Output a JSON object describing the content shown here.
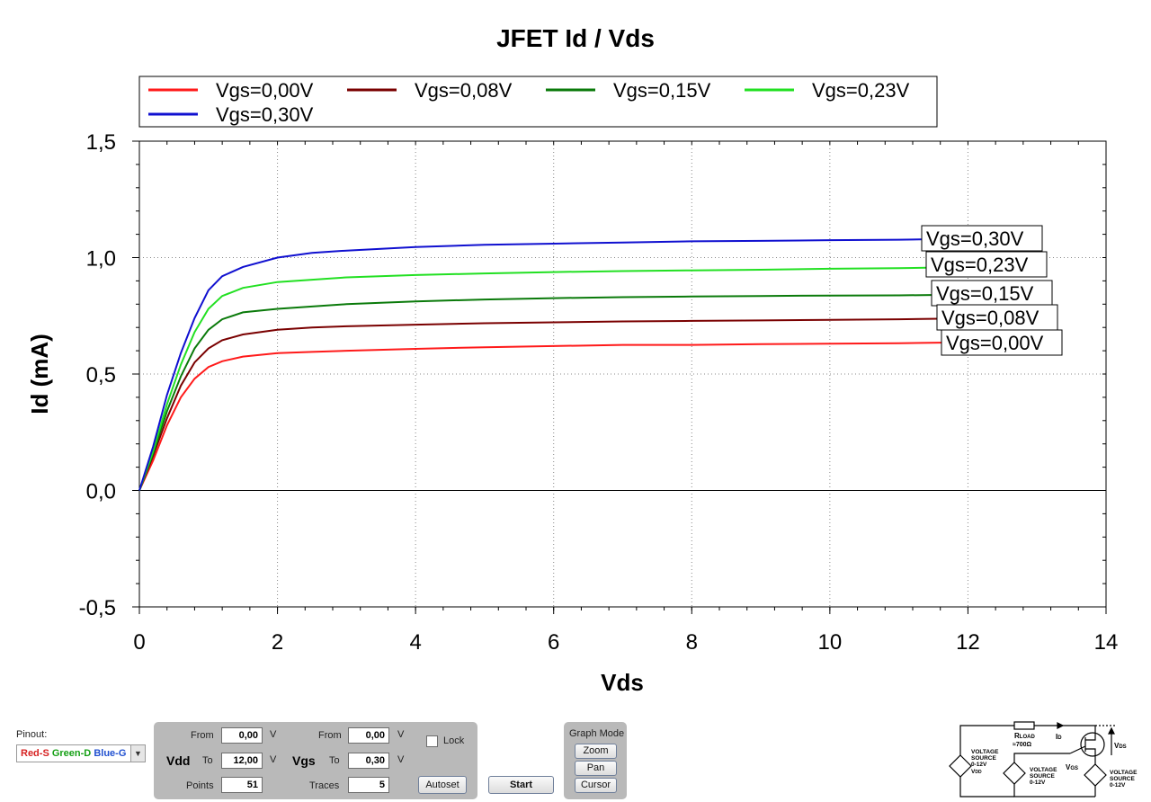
{
  "chart_data": {
    "type": "line",
    "title": "JFET Id / Vds",
    "xlabel": "Vds",
    "ylabel": "Id (mA)",
    "xlim": [
      0,
      14
    ],
    "ylim": [
      -0.5,
      1.5
    ],
    "x_ticks": [
      0,
      2,
      4,
      6,
      8,
      10,
      12,
      14
    ],
    "x_tick_labels": [
      "0",
      "2",
      "4",
      "6",
      "8",
      "10",
      "12",
      "14"
    ],
    "y_ticks": [
      -0.5,
      0.0,
      0.5,
      1.0,
      1.5
    ],
    "y_tick_labels": [
      "-0,5",
      "0,0",
      "0,5",
      "1,0",
      "1,5"
    ],
    "grid": "dotted",
    "legend_position": "top",
    "x": [
      0,
      0.2,
      0.4,
      0.6,
      0.8,
      1.0,
      1.2,
      1.5,
      2,
      2.5,
      3,
      4,
      5,
      6,
      7,
      8,
      9,
      10,
      11,
      11.7
    ],
    "series": [
      {
        "name": "Vgs=0,00V",
        "color": "#ff1a1a",
        "end_label": "Vgs=0,00V",
        "values": [
          0,
          0.13,
          0.28,
          0.4,
          0.48,
          0.53,
          0.555,
          0.575,
          0.59,
          0.595,
          0.6,
          0.608,
          0.615,
          0.62,
          0.625,
          0.625,
          0.628,
          0.63,
          0.632,
          0.635
        ]
      },
      {
        "name": "Vgs=0,08V",
        "color": "#7a0000",
        "end_label": "Vgs=0,08V",
        "values": [
          0,
          0.15,
          0.31,
          0.45,
          0.55,
          0.61,
          0.645,
          0.67,
          0.69,
          0.7,
          0.705,
          0.712,
          0.718,
          0.722,
          0.726,
          0.728,
          0.73,
          0.733,
          0.735,
          0.738
        ]
      },
      {
        "name": "Vgs=0,15V",
        "color": "#0a7a0a",
        "end_label": "Vgs=0,15V",
        "values": [
          0,
          0.16,
          0.34,
          0.49,
          0.61,
          0.69,
          0.735,
          0.765,
          0.78,
          0.79,
          0.8,
          0.812,
          0.82,
          0.826,
          0.83,
          0.833,
          0.835,
          0.837,
          0.838,
          0.84
        ]
      },
      {
        "name": "Vgs=0,23V",
        "color": "#22e022",
        "end_label": "Vgs=0,23V",
        "values": [
          0,
          0.17,
          0.37,
          0.54,
          0.68,
          0.78,
          0.835,
          0.87,
          0.895,
          0.905,
          0.915,
          0.925,
          0.932,
          0.938,
          0.942,
          0.945,
          0.948,
          0.952,
          0.955,
          0.958
        ]
      },
      {
        "name": "Vgs=0,30V",
        "color": "#1010d0",
        "end_label": "Vgs=0,30V",
        "values": [
          0,
          0.19,
          0.41,
          0.59,
          0.74,
          0.86,
          0.92,
          0.96,
          1.0,
          1.02,
          1.03,
          1.045,
          1.055,
          1.06,
          1.065,
          1.07,
          1.072,
          1.075,
          1.077,
          1.08
        ]
      }
    ]
  },
  "controls": {
    "pinout_label": "Pinout:",
    "pinout_value": {
      "red": "Red-S",
      "green": "Green-D",
      "blue": "Blue-G"
    },
    "from_label": "From",
    "to_label": "To",
    "points_label": "Points",
    "traces_label": "Traces",
    "unit_v": "V",
    "vdd_label": "Vdd",
    "vgs_label": "Vgs",
    "vdd_from": "0,00",
    "vdd_to": "12,00",
    "points": "51",
    "vgs_from": "0,00",
    "vgs_to": "0,30",
    "traces": "5",
    "lock_label": "Lock",
    "autoset_label": "Autoset",
    "start_label": "Start",
    "graph_mode_label": "Graph Mode",
    "zoom_label": "Zoom",
    "pan_label": "Pan",
    "cursor_label": "Cursor"
  },
  "schematic": {
    "rload": "R",
    "rload_sub": "LOAD",
    "rload_value": "≈700Ω",
    "id_label": "I",
    "id_sub": "D",
    "vds_label": "V",
    "vds_sub": "DS",
    "vgs_label": "V",
    "vgs_sub": "GS",
    "source1": [
      "VOLTAGE",
      "SOURCE",
      "0-12V",
      "V"
    ],
    "source1_sub": "DD",
    "source2": [
      "VOLTAGE",
      "SOURCE",
      "0-12V"
    ],
    "source3": [
      "VOLTAGE",
      "SOURCE",
      "0-12V"
    ]
  }
}
